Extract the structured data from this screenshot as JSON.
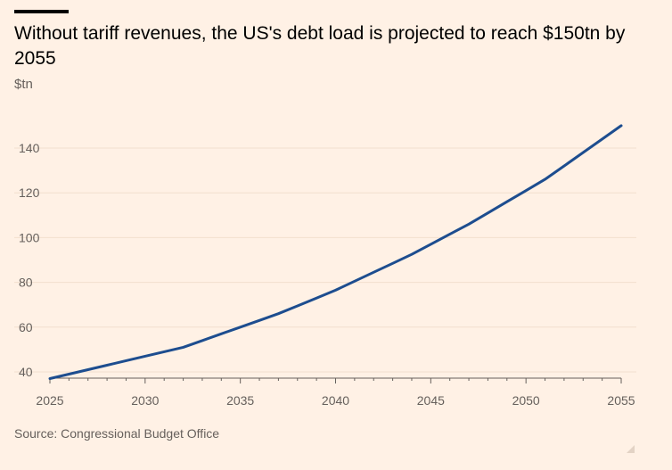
{
  "header": {
    "title": "Without tariff revenues, the US's debt load is projected to reach $150tn by 2055",
    "unit": "$tn"
  },
  "footer": {
    "source": "Source: Congressional Budget Office"
  },
  "colors": {
    "background": "#fff1e5",
    "line": "#1d4d8f",
    "grid": "#f2dfce",
    "text": "#66605c"
  },
  "icons": [
    "resize-icon"
  ],
  "chart_data": {
    "type": "line",
    "title": "Without tariff revenues, the US's debt load is projected to reach $150tn by 2055",
    "xlabel": "",
    "ylabel": "$tn",
    "x_ticks": [
      2025,
      2030,
      2035,
      2040,
      2045,
      2050,
      2055
    ],
    "y_ticks": [
      40,
      60,
      80,
      100,
      120,
      140
    ],
    "xlim": [
      2025,
      2055
    ],
    "ylim": [
      35,
      155
    ],
    "grid": true,
    "x": [
      2025,
      2026,
      2027,
      2028,
      2029,
      2030,
      2031,
      2032,
      2033,
      2034,
      2035,
      2036,
      2037,
      2038,
      2039,
      2040,
      2041,
      2042,
      2043,
      2044,
      2045,
      2046,
      2047,
      2048,
      2049,
      2050,
      2051,
      2052,
      2053,
      2054,
      2055
    ],
    "series": [
      {
        "values": [
          37,
          39,
          41,
          43,
          45,
          47,
          49,
          51,
          54,
          57,
          60,
          63,
          66,
          69.5,
          73,
          76.5,
          80.5,
          84.5,
          88.5,
          92.5,
          97,
          101.5,
          106,
          111,
          116,
          121,
          126,
          132,
          138,
          144,
          150
        ]
      }
    ]
  }
}
